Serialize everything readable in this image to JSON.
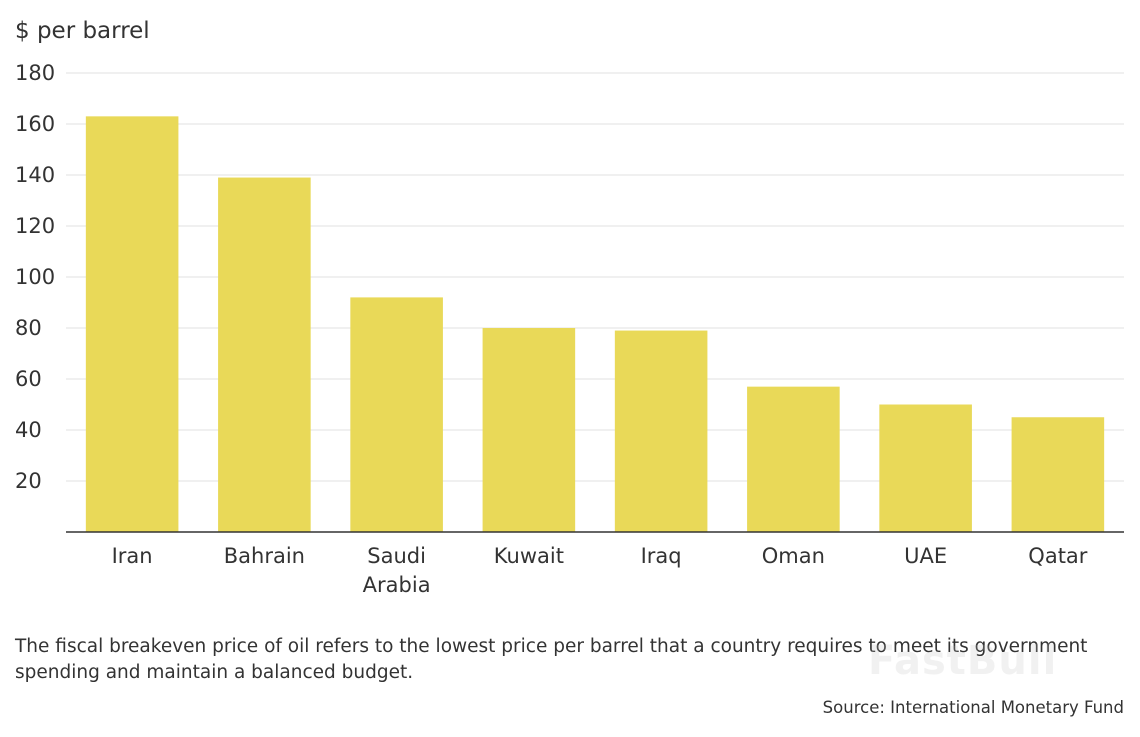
{
  "chart_data": {
    "type": "bar",
    "title": "",
    "ylabel": "$ per barrel",
    "xlabel": "",
    "ylim": [
      0,
      180
    ],
    "yticks": [
      20,
      40,
      60,
      80,
      100,
      120,
      140,
      160,
      180
    ],
    "categories": [
      [
        "Iran"
      ],
      [
        "Bahrain"
      ],
      [
        "Saudi",
        "Arabia"
      ],
      [
        "Kuwait"
      ],
      [
        "Iraq"
      ],
      [
        "Oman"
      ],
      [
        "UAE"
      ],
      [
        "Qatar"
      ]
    ],
    "values": [
      163,
      139,
      92,
      80,
      79,
      57,
      50,
      45
    ],
    "bar_color": "#e9d958",
    "grid": true
  },
  "note": "The fiscal breakeven price of oil refers to the lowest price per barrel that a country requires to meet its government spending and maintain a balanced budget.",
  "source": "Source: International Monetary Fund",
  "watermark": "FastBull",
  "colors": {
    "text": "#333333",
    "grid": "#e2e2e2",
    "axis": "#333333"
  }
}
